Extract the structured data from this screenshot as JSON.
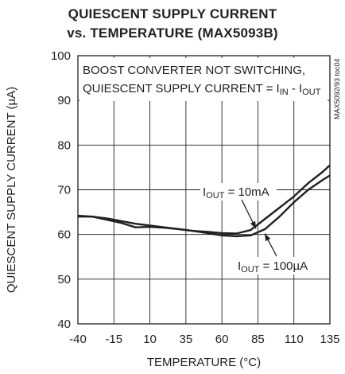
{
  "chart_data": {
    "type": "line",
    "title": "QUIESCENT SUPPLY CURRENT",
    "subtitle": "vs. TEMPERATURE (MAX5093B)",
    "xlabel": "TEMPERATURE (°C)",
    "ylabel": "QUIESCENT SUPPLY CURRENT (µA)",
    "xlim": [
      -40,
      135
    ],
    "ylim": [
      40,
      100
    ],
    "xticks": [
      "-40",
      "-15",
      "10",
      "35",
      "60",
      "85",
      "110",
      "135"
    ],
    "yticks": [
      "40",
      "50",
      "60",
      "70",
      "80",
      "90",
      "100"
    ],
    "grid": true,
    "annotation_lines": [
      "BOOST CONVERTER NOT SWITCHING,",
      "QUIESCENT SUPPLY CURRENT = I",
      "IN",
      " - I",
      "OUT"
    ],
    "figure_code": "MAX5092/93 toc04",
    "series": [
      {
        "name": "IOUT = 10mA",
        "label_main": "I",
        "label_sub": "OUT",
        "label_rest": " = 10mA",
        "x": [
          -40,
          -30,
          -20,
          -10,
          0,
          10,
          20,
          30,
          40,
          50,
          60,
          70,
          80,
          90,
          100,
          110,
          120,
          130,
          135
        ],
        "y": [
          64.0,
          64.0,
          63.6,
          63.0,
          62.4,
          62.0,
          61.6,
          61.2,
          60.8,
          60.6,
          60.3,
          60.2,
          61.0,
          63.5,
          66.0,
          68.5,
          71.5,
          74.0,
          75.5
        ]
      },
      {
        "name": "IOUT = 100µA",
        "label_main": "I",
        "label_sub": "OUT",
        "label_rest": " = 100µA",
        "x": [
          -40,
          -30,
          -20,
          -10,
          0,
          10,
          20,
          30,
          40,
          50,
          60,
          70,
          80,
          90,
          100,
          110,
          120,
          130,
          135
        ],
        "y": [
          64.2,
          64.0,
          63.3,
          62.6,
          61.6,
          61.7,
          61.5,
          61.2,
          60.8,
          60.3,
          59.8,
          59.6,
          59.8,
          61.2,
          64.0,
          67.2,
          70.0,
          72.2,
          73.2
        ]
      }
    ]
  }
}
